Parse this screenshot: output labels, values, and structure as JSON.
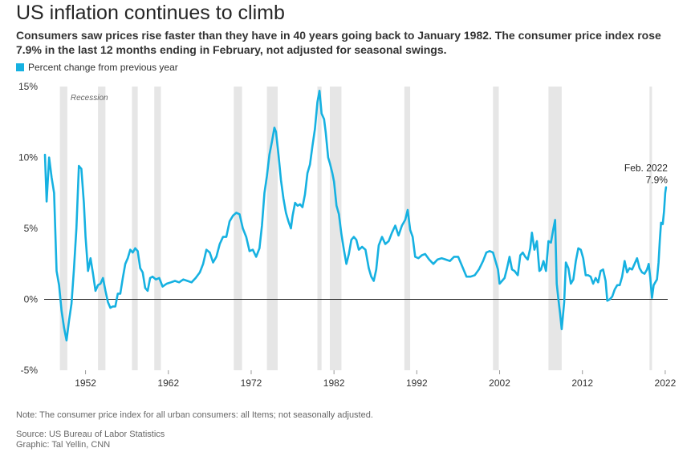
{
  "title": "US inflation continues to climb",
  "subtitle": "Consumers saw prices rise faster than they have in 40 years going back to January 1982. The consumer price index rose 7.9% in the last 12 months ending in February, not adjusted for seasonal swings.",
  "note": "Note: The consumer price index for all urban consumers: all Items; not seasonally adjusted.",
  "source": "Source: US Bureau of Labor Statistics",
  "graphic": "Graphic: Tal Yellin, CNN",
  "colors": {
    "line": "#16b1e1",
    "recession": "#e6e6e6",
    "zero": "#222222",
    "grid": "#cccccc"
  },
  "chart_data": {
    "type": "line",
    "title": "",
    "xlabel": "",
    "ylabel": "",
    "legend": {
      "label": "Percent change from previous year",
      "placement": "top-left"
    },
    "xlim": [
      1947.0,
      2022.3
    ],
    "ylim": [
      -5,
      15
    ],
    "y_ticks": [
      -5,
      0,
      5,
      10,
      15
    ],
    "y_tick_labels": [
      "-5%",
      "0%",
      "5%",
      "10%",
      "15%"
    ],
    "x_ticks": [
      1952,
      1962,
      1972,
      1982,
      1992,
      2002,
      2012,
      2022
    ],
    "x_tick_labels": [
      "1952",
      "1962",
      "1972",
      "1982",
      "1992",
      "2002",
      "2012",
      "2022"
    ],
    "recession_label": "Recession",
    "recessions": [
      [
        1948.9,
        1949.8
      ],
      [
        1953.5,
        1954.4
      ],
      [
        1957.6,
        1958.3
      ],
      [
        1960.3,
        1961.1
      ],
      [
        1969.9,
        1970.9
      ],
      [
        1973.9,
        1975.2
      ],
      [
        1980.0,
        1980.5
      ],
      [
        1981.5,
        1982.9
      ],
      [
        1990.5,
        1991.2
      ],
      [
        2001.2,
        2001.9
      ],
      [
        2007.9,
        2009.5
      ],
      [
        2020.1,
        2020.4
      ]
    ],
    "grid": false,
    "annotation": {
      "x": 2022.1,
      "y": 7.9,
      "label": "Feb. 2022",
      "value_label": "7.9%"
    },
    "series": [
      {
        "points": [
          [
            1947.1,
            10.2
          ],
          [
            1947.3,
            6.9
          ],
          [
            1947.6,
            10.0
          ],
          [
            1947.9,
            8.6
          ],
          [
            1948.2,
            7.5
          ],
          [
            1948.5,
            2.0
          ],
          [
            1948.8,
            1.0
          ],
          [
            1949.1,
            -0.8
          ],
          [
            1949.4,
            -2.0
          ],
          [
            1949.7,
            -2.9
          ],
          [
            1950.0,
            -1.5
          ],
          [
            1950.3,
            -0.3
          ],
          [
            1950.6,
            2.1
          ],
          [
            1950.9,
            5.0
          ],
          [
            1951.2,
            9.4
          ],
          [
            1951.5,
            9.2
          ],
          [
            1951.8,
            6.8
          ],
          [
            1952.0,
            4.4
          ],
          [
            1952.3,
            2.0
          ],
          [
            1952.6,
            2.9
          ],
          [
            1952.9,
            1.8
          ],
          [
            1953.2,
            0.6
          ],
          [
            1953.5,
            1.0
          ],
          [
            1953.8,
            1.1
          ],
          [
            1954.1,
            1.5
          ],
          [
            1954.4,
            0.6
          ],
          [
            1954.7,
            -0.2
          ],
          [
            1955.0,
            -0.6
          ],
          [
            1955.3,
            -0.5
          ],
          [
            1955.6,
            -0.5
          ],
          [
            1955.9,
            0.4
          ],
          [
            1956.2,
            0.4
          ],
          [
            1956.5,
            1.5
          ],
          [
            1956.8,
            2.5
          ],
          [
            1957.1,
            2.9
          ],
          [
            1957.4,
            3.5
          ],
          [
            1957.7,
            3.3
          ],
          [
            1958.0,
            3.6
          ],
          [
            1958.3,
            3.4
          ],
          [
            1958.6,
            2.2
          ],
          [
            1958.9,
            1.9
          ],
          [
            1959.2,
            0.8
          ],
          [
            1959.5,
            0.6
          ],
          [
            1959.8,
            1.5
          ],
          [
            1960.1,
            1.6
          ],
          [
            1960.5,
            1.4
          ],
          [
            1960.9,
            1.5
          ],
          [
            1961.3,
            0.9
          ],
          [
            1961.8,
            1.1
          ],
          [
            1962.3,
            1.2
          ],
          [
            1962.8,
            1.3
          ],
          [
            1963.3,
            1.2
          ],
          [
            1963.8,
            1.4
          ],
          [
            1964.3,
            1.3
          ],
          [
            1964.8,
            1.2
          ],
          [
            1965.3,
            1.5
          ],
          [
            1965.8,
            1.9
          ],
          [
            1966.2,
            2.5
          ],
          [
            1966.6,
            3.5
          ],
          [
            1967.0,
            3.3
          ],
          [
            1967.4,
            2.6
          ],
          [
            1967.8,
            3.0
          ],
          [
            1968.2,
            3.9
          ],
          [
            1968.6,
            4.4
          ],
          [
            1969.0,
            4.4
          ],
          [
            1969.4,
            5.5
          ],
          [
            1969.8,
            5.9
          ],
          [
            1970.2,
            6.1
          ],
          [
            1970.6,
            6.0
          ],
          [
            1971.0,
            5.0
          ],
          [
            1971.4,
            4.4
          ],
          [
            1971.8,
            3.4
          ],
          [
            1972.2,
            3.5
          ],
          [
            1972.6,
            3.0
          ],
          [
            1973.0,
            3.6
          ],
          [
            1973.3,
            5.2
          ],
          [
            1973.6,
            7.5
          ],
          [
            1973.9,
            8.7
          ],
          [
            1974.2,
            10.2
          ],
          [
            1974.5,
            11.1
          ],
          [
            1974.8,
            12.1
          ],
          [
            1975.0,
            11.8
          ],
          [
            1975.3,
            10.2
          ],
          [
            1975.6,
            8.4
          ],
          [
            1975.9,
            7.1
          ],
          [
            1976.2,
            6.1
          ],
          [
            1976.5,
            5.5
          ],
          [
            1976.8,
            5.0
          ],
          [
            1977.0,
            5.9
          ],
          [
            1977.3,
            6.8
          ],
          [
            1977.6,
            6.6
          ],
          [
            1977.9,
            6.7
          ],
          [
            1978.2,
            6.5
          ],
          [
            1978.5,
            7.4
          ],
          [
            1978.8,
            8.9
          ],
          [
            1979.1,
            9.5
          ],
          [
            1979.4,
            10.8
          ],
          [
            1979.7,
            12.0
          ],
          [
            1980.0,
            13.9
          ],
          [
            1980.25,
            14.7
          ],
          [
            1980.5,
            13.1
          ],
          [
            1980.8,
            12.7
          ],
          [
            1981.0,
            11.8
          ],
          [
            1981.3,
            10.0
          ],
          [
            1981.5,
            9.6
          ],
          [
            1981.8,
            8.9
          ],
          [
            1982.0,
            8.3
          ],
          [
            1982.3,
            6.6
          ],
          [
            1982.6,
            6.0
          ],
          [
            1982.9,
            4.6
          ],
          [
            1983.2,
            3.5
          ],
          [
            1983.5,
            2.5
          ],
          [
            1983.8,
            3.2
          ],
          [
            1984.1,
            4.2
          ],
          [
            1984.4,
            4.4
          ],
          [
            1984.7,
            4.2
          ],
          [
            1985.0,
            3.5
          ],
          [
            1985.4,
            3.7
          ],
          [
            1985.8,
            3.5
          ],
          [
            1986.2,
            2.2
          ],
          [
            1986.5,
            1.6
          ],
          [
            1986.8,
            1.3
          ],
          [
            1987.1,
            2.1
          ],
          [
            1987.4,
            3.8
          ],
          [
            1987.8,
            4.4
          ],
          [
            1988.2,
            3.9
          ],
          [
            1988.6,
            4.1
          ],
          [
            1989.0,
            4.7
          ],
          [
            1989.4,
            5.2
          ],
          [
            1989.8,
            4.5
          ],
          [
            1990.2,
            5.2
          ],
          [
            1990.6,
            5.6
          ],
          [
            1990.9,
            6.3
          ],
          [
            1991.2,
            4.9
          ],
          [
            1991.5,
            4.4
          ],
          [
            1991.8,
            3.0
          ],
          [
            1992.2,
            2.9
          ],
          [
            1992.6,
            3.1
          ],
          [
            1993.0,
            3.2
          ],
          [
            1993.5,
            2.8
          ],
          [
            1994.0,
            2.5
          ],
          [
            1994.5,
            2.8
          ],
          [
            1995.0,
            2.9
          ],
          [
            1995.5,
            2.8
          ],
          [
            1996.0,
            2.7
          ],
          [
            1996.5,
            3.0
          ],
          [
            1997.0,
            3.0
          ],
          [
            1997.5,
            2.3
          ],
          [
            1998.0,
            1.6
          ],
          [
            1998.5,
            1.6
          ],
          [
            1999.0,
            1.7
          ],
          [
            1999.5,
            2.1
          ],
          [
            2000.0,
            2.7
          ],
          [
            2000.4,
            3.3
          ],
          [
            2000.8,
            3.4
          ],
          [
            2001.2,
            3.3
          ],
          [
            2001.5,
            2.7
          ],
          [
            2001.8,
            2.1
          ],
          [
            2002.0,
            1.1
          ],
          [
            2002.3,
            1.3
          ],
          [
            2002.6,
            1.5
          ],
          [
            2002.9,
            2.2
          ],
          [
            2003.2,
            3.0
          ],
          [
            2003.5,
            2.1
          ],
          [
            2003.8,
            2.0
          ],
          [
            2004.2,
            1.7
          ],
          [
            2004.5,
            3.1
          ],
          [
            2004.8,
            3.3
          ],
          [
            2005.1,
            3.0
          ],
          [
            2005.4,
            2.8
          ],
          [
            2005.7,
            3.6
          ],
          [
            2005.9,
            4.7
          ],
          [
            2006.2,
            3.5
          ],
          [
            2006.5,
            4.1
          ],
          [
            2006.8,
            2.0
          ],
          [
            2007.0,
            2.1
          ],
          [
            2007.3,
            2.7
          ],
          [
            2007.6,
            2.0
          ],
          [
            2007.9,
            4.1
          ],
          [
            2008.2,
            4.0
          ],
          [
            2008.5,
            5.0
          ],
          [
            2008.7,
            5.6
          ],
          [
            2008.9,
            1.1
          ],
          [
            2009.1,
            0.0
          ],
          [
            2009.3,
            -1.0
          ],
          [
            2009.5,
            -2.1
          ],
          [
            2009.8,
            -0.2
          ],
          [
            2010.0,
            2.6
          ],
          [
            2010.3,
            2.2
          ],
          [
            2010.6,
            1.1
          ],
          [
            2010.9,
            1.4
          ],
          [
            2011.2,
            2.7
          ],
          [
            2011.5,
            3.6
          ],
          [
            2011.8,
            3.5
          ],
          [
            2012.1,
            2.9
          ],
          [
            2012.4,
            1.7
          ],
          [
            2012.7,
            1.7
          ],
          [
            2013.0,
            1.6
          ],
          [
            2013.3,
            1.1
          ],
          [
            2013.6,
            1.5
          ],
          [
            2013.9,
            1.2
          ],
          [
            2014.2,
            2.0
          ],
          [
            2014.5,
            2.1
          ],
          [
            2014.8,
            1.3
          ],
          [
            2015.0,
            -0.1
          ],
          [
            2015.3,
            0.0
          ],
          [
            2015.6,
            0.2
          ],
          [
            2015.9,
            0.7
          ],
          [
            2016.2,
            1.0
          ],
          [
            2016.5,
            1.0
          ],
          [
            2016.8,
            1.6
          ],
          [
            2017.1,
            2.7
          ],
          [
            2017.4,
            1.9
          ],
          [
            2017.7,
            2.2
          ],
          [
            2018.0,
            2.1
          ],
          [
            2018.3,
            2.5
          ],
          [
            2018.6,
            2.9
          ],
          [
            2018.9,
            2.2
          ],
          [
            2019.2,
            1.9
          ],
          [
            2019.5,
            1.8
          ],
          [
            2019.8,
            2.1
          ],
          [
            2020.0,
            2.5
          ],
          [
            2020.2,
            1.5
          ],
          [
            2020.4,
            0.1
          ],
          [
            2020.6,
            1.0
          ],
          [
            2020.8,
            1.2
          ],
          [
            2021.0,
            1.4
          ],
          [
            2021.2,
            2.6
          ],
          [
            2021.35,
            4.2
          ],
          [
            2021.5,
            5.4
          ],
          [
            2021.7,
            5.3
          ],
          [
            2021.85,
            6.2
          ],
          [
            2022.0,
            7.5
          ],
          [
            2022.1,
            7.9
          ]
        ]
      }
    ]
  }
}
